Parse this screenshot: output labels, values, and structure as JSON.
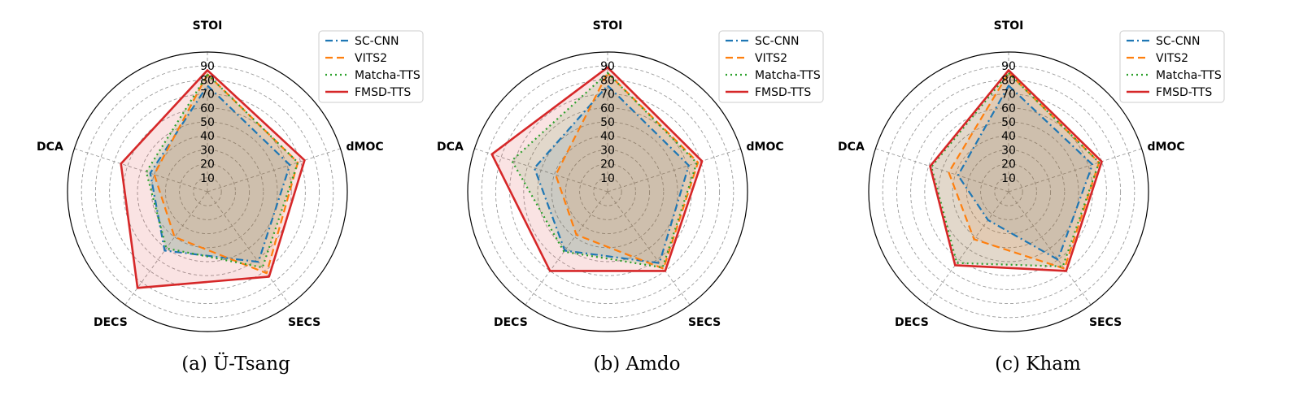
{
  "chart_data": [
    {
      "type": "radar",
      "caption": "(a) Ü-Tsang",
      "axes": [
        "STOI",
        "dMOC",
        "SECS",
        "DECS",
        "DCA"
      ],
      "rticks": [
        10,
        20,
        30,
        40,
        50,
        60,
        70,
        80,
        90
      ],
      "rlim": [
        0,
        100
      ],
      "grid": true,
      "legend_position": "top-right",
      "series": [
        {
          "name": "SC-CNN",
          "values": [
            76,
            62,
            62,
            52,
            43
          ],
          "color": "#1f77b4",
          "style": "dashdot"
        },
        {
          "name": "VITS2",
          "values": [
            84,
            68,
            72,
            40,
            40
          ],
          "color": "#ff7f0e",
          "style": "dashed"
        },
        {
          "name": "Matcha-TTS",
          "values": [
            84,
            68,
            67,
            50,
            46
          ],
          "color": "#2ca02c",
          "style": "dotted"
        },
        {
          "name": "FMSD-TTS",
          "values": [
            87,
            73,
            75,
            85,
            65
          ],
          "color": "#d62728",
          "style": "solid"
        }
      ]
    },
    {
      "type": "radar",
      "caption": "(b) Amdo",
      "axes": [
        "STOI",
        "dMOC",
        "SECS",
        "DECS",
        "DCA"
      ],
      "rticks": [
        10,
        20,
        30,
        40,
        50,
        60,
        70,
        80,
        90
      ],
      "rlim": [
        0,
        100
      ],
      "grid": true,
      "legend_position": "top-right",
      "series": [
        {
          "name": "SC-CNN",
          "values": [
            76,
            61,
            63,
            52,
            55
          ],
          "color": "#1f77b4",
          "style": "dashdot"
        },
        {
          "name": "VITS2",
          "values": [
            85,
            68,
            68,
            38,
            39
          ],
          "color": "#ff7f0e",
          "style": "dashed"
        },
        {
          "name": "Matcha-TTS",
          "values": [
            85,
            67,
            67,
            53,
            72
          ],
          "color": "#2ca02c",
          "style": "dotted"
        },
        {
          "name": "FMSD-TTS",
          "values": [
            89,
            71,
            70,
            70,
            87
          ],
          "color": "#d62728",
          "style": "solid"
        }
      ]
    },
    {
      "type": "radar",
      "caption": "(c) Kham",
      "axes": [
        "STOI",
        "dMOC",
        "SECS",
        "DECS",
        "DCA"
      ],
      "rticks": [
        10,
        20,
        30,
        40,
        50,
        60,
        70,
        80,
        90
      ],
      "rlim": [
        0,
        100
      ],
      "grid": true,
      "legend_position": "top-right",
      "series": [
        {
          "name": "SC-CNN",
          "values": [
            76,
            63,
            60,
            25,
            38
          ],
          "color": "#1f77b4",
          "style": "dashdot"
        },
        {
          "name": "VITS2",
          "values": [
            85,
            68,
            68,
            42,
            45
          ],
          "color": "#ff7f0e",
          "style": "dashed"
        },
        {
          "name": "Matcha-TTS",
          "values": [
            85,
            68,
            66,
            63,
            58
          ],
          "color": "#2ca02c",
          "style": "dotted"
        },
        {
          "name": "FMSD-TTS",
          "values": [
            87,
            70,
            70,
            65,
            59
          ],
          "color": "#d62728",
          "style": "solid"
        }
      ]
    }
  ]
}
